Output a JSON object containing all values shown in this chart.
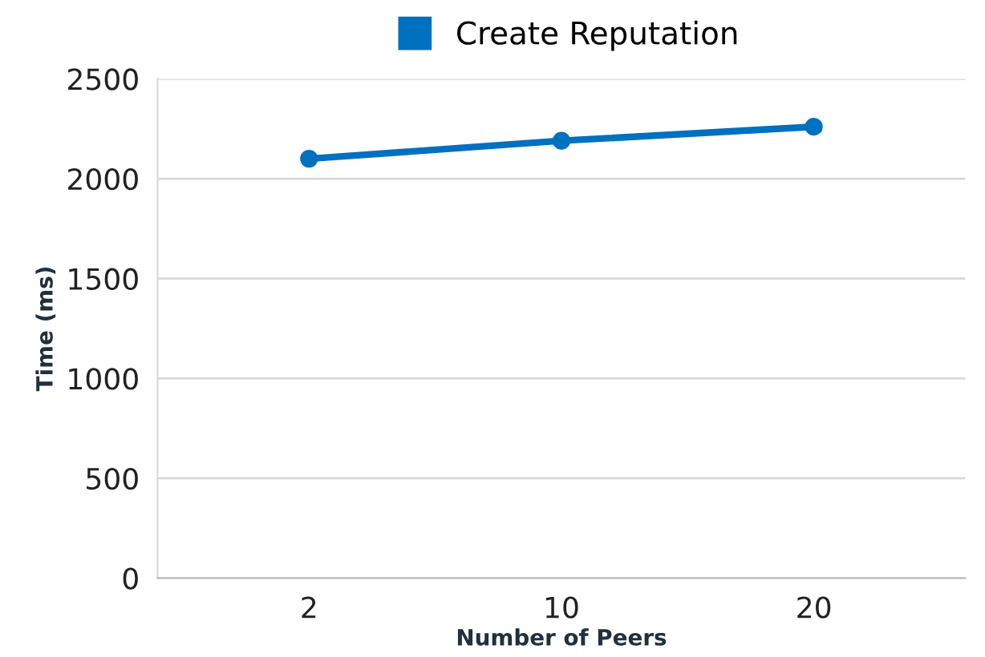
{
  "chart_data": {
    "type": "line",
    "xlabel": "Number of Peers",
    "ylabel": "Time (ms)",
    "categories": [
      "2",
      "10",
      "20"
    ],
    "series": [
      {
        "name": "Create Reputation",
        "color": "#0070c0",
        "values": [
          2100,
          2190,
          2260
        ]
      }
    ],
    "ylim": [
      0,
      2500
    ],
    "yticks": [
      0,
      500,
      1000,
      1500,
      2000,
      2500
    ],
    "grid": "y",
    "legend": "top",
    "marker": "circle",
    "line_style": "solid"
  }
}
